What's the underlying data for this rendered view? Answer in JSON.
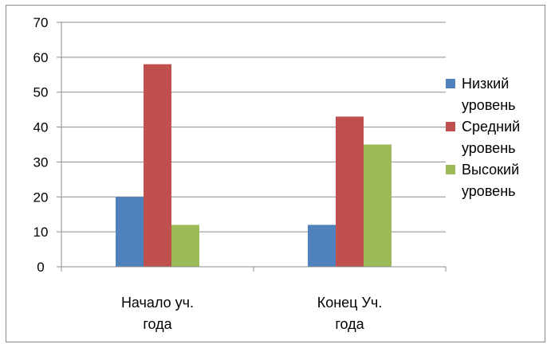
{
  "chart_data": {
    "type": "bar",
    "categories": [
      [
        "Начало уч.",
        "года"
      ],
      [
        "Конец Уч.",
        "года"
      ]
    ],
    "series": [
      {
        "name": "Низкий уровень",
        "label_lines": [
          "Низкий",
          "уровень"
        ],
        "color": "#4f81bd",
        "values": [
          20,
          12
        ]
      },
      {
        "name": "Средний уровень",
        "label_lines": [
          "Средний",
          "уровень"
        ],
        "color": "#c0504d",
        "values": [
          58,
          43
        ]
      },
      {
        "name": "Высокий уровень",
        "label_lines": [
          "Высокий",
          "уровень"
        ],
        "color": "#9bbb59",
        "values": [
          12,
          35
        ]
      }
    ],
    "ylim": [
      0,
      70
    ],
    "yticks": [
      0,
      10,
      20,
      30,
      40,
      50,
      60,
      70
    ],
    "grid": true,
    "legend_position": "right",
    "title": "",
    "xlabel": "",
    "ylabel": ""
  }
}
